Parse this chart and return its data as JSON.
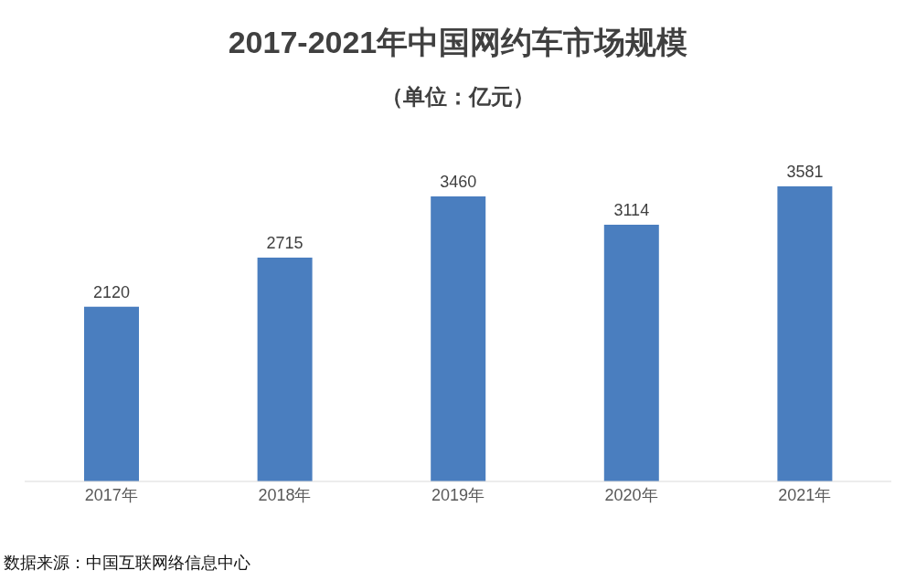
{
  "chart_data": {
    "type": "bar",
    "title": "2017-2021年中国网约车市场规模",
    "subtitle": "（单位：亿元）",
    "categories": [
      "2017年",
      "2018年",
      "2019年",
      "2020年",
      "2021年"
    ],
    "values": [
      2120,
      2715,
      3460,
      3114,
      3581
    ],
    "color": "#4a7ebf",
    "data_labels": true,
    "tick_labels": "x",
    "annotations": [
      "数据来源：中国互联网络信息中心"
    ]
  }
}
